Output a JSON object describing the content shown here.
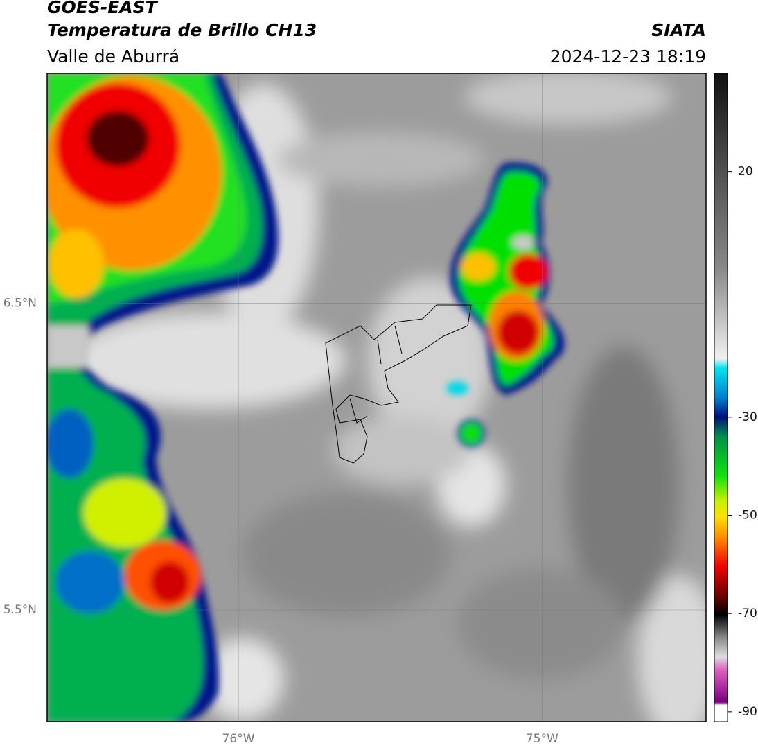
{
  "map": {
    "title": "GOES-EAST",
    "subtitle": "Temperatura de Brillo CH13",
    "region": "Valle de Aburrá",
    "source": "SIATA",
    "datetime": "2024-12-23 18:19",
    "xlim": [
      -76.63,
      -74.46
    ],
    "ylim": [
      5.136,
      7.25
    ],
    "xticks": [
      {
        "value": -76,
        "label": "76°W"
      },
      {
        "value": -75,
        "label": "75°W"
      }
    ],
    "yticks": [
      {
        "value": 6.5,
        "label": "6.5°N"
      },
      {
        "value": 5.5,
        "label": "5.5°N"
      }
    ],
    "grid": true,
    "colorbar": {
      "lim": [
        -92,
        40
      ],
      "ticks": [
        20,
        -30,
        -50,
        -70,
        -90
      ]
    }
  }
}
